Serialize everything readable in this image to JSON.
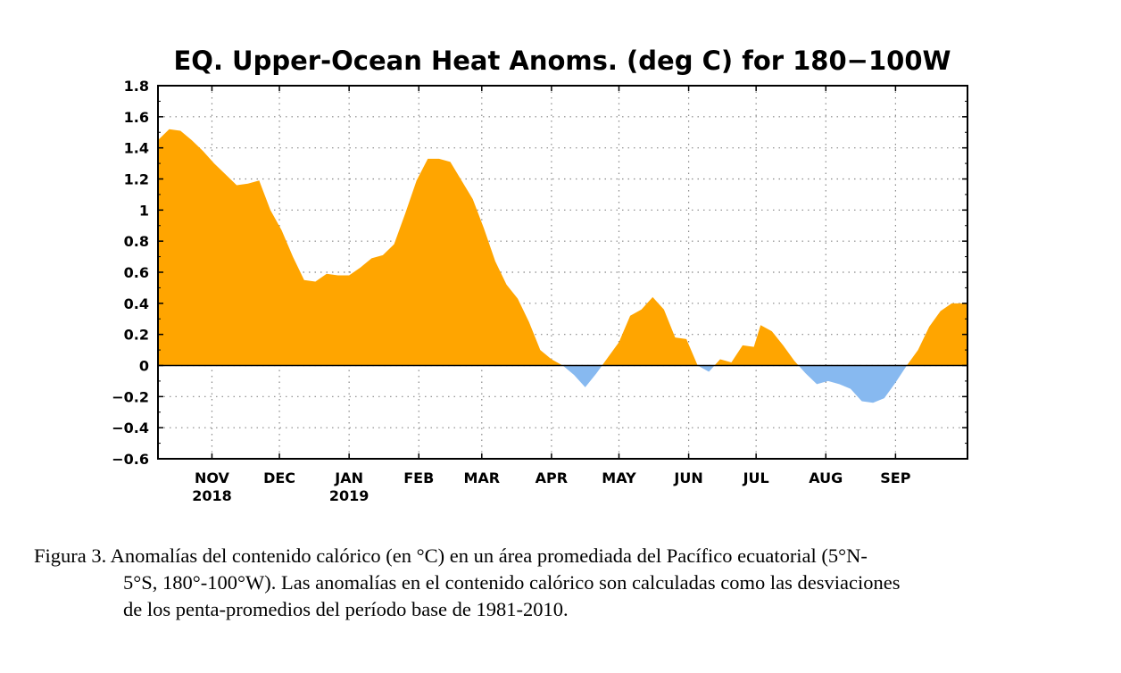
{
  "chart_data": {
    "type": "area",
    "title": "EQ. Upper-Ocean Heat Anoms. (deg C) for 180−100W",
    "xlabel": "",
    "ylabel": "",
    "ylim": [
      -0.6,
      1.8
    ],
    "yticks": [
      -0.6,
      -0.4,
      -0.2,
      0,
      0.2,
      0.4,
      0.6,
      0.8,
      1,
      1.2,
      1.4,
      1.6,
      1.8
    ],
    "ytick_labels": [
      "−0.6",
      "−0.4",
      "−0.2",
      "0",
      "0.2",
      "0.4",
      "0.6",
      "0.8",
      "1",
      "1.2",
      "1.4",
      "1.6",
      "1.8"
    ],
    "xlim": [
      "2018-10-08",
      "2019-10-03"
    ],
    "xticks": [
      {
        "date": "2018-11-01",
        "label": "NOV",
        "sublabel": "2018"
      },
      {
        "date": "2018-12-01",
        "label": "DEC",
        "sublabel": ""
      },
      {
        "date": "2019-01-01",
        "label": "JAN",
        "sublabel": "2019"
      },
      {
        "date": "2019-02-01",
        "label": "FEB",
        "sublabel": ""
      },
      {
        "date": "2019-03-01",
        "label": "MAR",
        "sublabel": ""
      },
      {
        "date": "2019-04-01",
        "label": "APR",
        "sublabel": ""
      },
      {
        "date": "2019-05-01",
        "label": "MAY",
        "sublabel": ""
      },
      {
        "date": "2019-06-01",
        "label": "JUN",
        "sublabel": ""
      },
      {
        "date": "2019-07-01",
        "label": "JUL",
        "sublabel": ""
      },
      {
        "date": "2019-08-01",
        "label": "AUG",
        "sublabel": ""
      },
      {
        "date": "2019-09-01",
        "label": "SEP",
        "sublabel": ""
      }
    ],
    "grid": true,
    "positive_color": "#FFA500",
    "negative_color": "#87B9F0",
    "series": [
      {
        "x": [
          "2018-10-08",
          "2018-10-13",
          "2018-10-18",
          "2018-10-23",
          "2018-10-28",
          "2018-11-02",
          "2018-11-07",
          "2018-11-12",
          "2018-11-17",
          "2018-11-22",
          "2018-11-27",
          "2018-12-02",
          "2018-12-07",
          "2018-12-12",
          "2018-12-17",
          "2018-12-22",
          "2018-12-27",
          "2019-01-01",
          "2019-01-06",
          "2019-01-11",
          "2019-01-16",
          "2019-01-21",
          "2019-01-26",
          "2019-01-31",
          "2019-02-05",
          "2019-02-10",
          "2019-02-15",
          "2019-02-20",
          "2019-02-25",
          "2019-03-02",
          "2019-03-07",
          "2019-03-12",
          "2019-03-17",
          "2019-03-22",
          "2019-03-27",
          "2019-04-01",
          "2019-04-06",
          "2019-04-11",
          "2019-04-16",
          "2019-04-21",
          "2019-04-26",
          "2019-05-01",
          "2019-05-06",
          "2019-05-11",
          "2019-05-16",
          "2019-05-21",
          "2019-05-26",
          "2019-05-31",
          "2019-06-05",
          "2019-06-10",
          "2019-06-15",
          "2019-06-20",
          "2019-06-25",
          "2019-06-30",
          "2019-07-03",
          "2019-07-08",
          "2019-07-13",
          "2019-07-18",
          "2019-07-23",
          "2019-07-28",
          "2019-08-02",
          "2019-08-07",
          "2019-08-12",
          "2019-08-17",
          "2019-08-22",
          "2019-08-27",
          "2019-09-01",
          "2019-09-06",
          "2019-09-11",
          "2019-09-16",
          "2019-09-21",
          "2019-09-26",
          "2019-10-01",
          "2019-10-03"
        ],
        "y": [
          1.45,
          1.52,
          1.51,
          1.45,
          1.38,
          1.3,
          1.23,
          1.16,
          1.17,
          1.19,
          1.0,
          0.87,
          0.7,
          0.55,
          0.54,
          0.59,
          0.58,
          0.58,
          0.63,
          0.69,
          0.71,
          0.78,
          0.98,
          1.19,
          1.33,
          1.33,
          1.31,
          1.19,
          1.07,
          0.88,
          0.67,
          0.52,
          0.43,
          0.28,
          0.1,
          0.04,
          0.0,
          -0.06,
          -0.14,
          -0.05,
          0.05,
          0.15,
          0.32,
          0.36,
          0.44,
          0.36,
          0.18,
          0.17,
          0.0,
          -0.04,
          0.04,
          0.02,
          0.13,
          0.12,
          0.26,
          0.22,
          0.13,
          0.03,
          -0.05,
          -0.12,
          -0.1,
          -0.12,
          -0.15,
          -0.23,
          -0.24,
          -0.21,
          -0.11,
          0.0,
          0.1,
          0.25,
          0.35,
          0.4,
          0.4,
          0.4
        ]
      }
    ]
  },
  "caption": {
    "line1": "Figura 3. Anomalías del contenido calórico (en °C) en un área promediada del Pacífico ecuatorial (5°N-",
    "line2": "5°S, 180°-100°W). Las anomalías en el contenido calórico son calculadas como las desviaciones",
    "line3": "de los penta-promedios del período base de 1981-2010."
  }
}
